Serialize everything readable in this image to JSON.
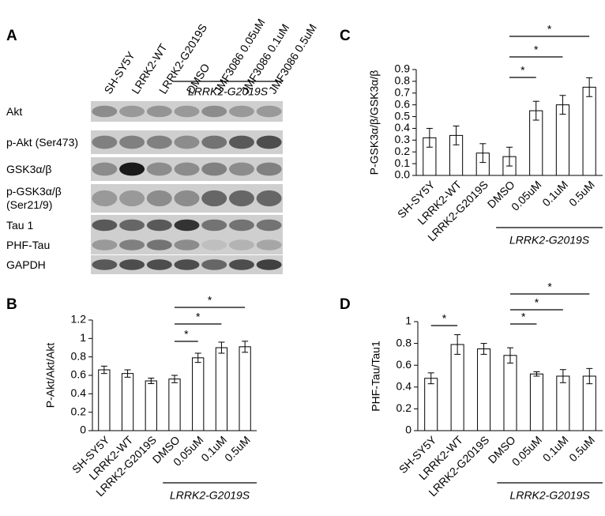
{
  "blot": {
    "panel": "A",
    "columns": [
      "SH-SY5Y",
      "LRRK2-WT",
      "LRRK2-G2019S",
      "DMSO",
      "JMF3086 0.05uM",
      "JMF3086 0.1uM",
      "JMF3086 0.5uM"
    ],
    "group": {
      "label": "LRRK2-G2019S",
      "from": 3,
      "to": 6
    },
    "rows": [
      "Akt",
      "p-Akt (Ser473)",
      "GSK3α/β",
      "p-GSK3α/β (Ser21/9)",
      "Tau 1",
      "PHF-Tau",
      "GAPDH"
    ]
  },
  "chart_data": [
    {
      "type": "bar",
      "panel": "B",
      "ylabel": "P-Akt/Akt/Akt",
      "color": "#ffffff",
      "categories": [
        "SH-SY5Y",
        "LRRK2-WT",
        "LRRK2-G2019S",
        "DMSO",
        "0.05uM",
        "0.1uM",
        "0.5uM"
      ],
      "values": [
        0.66,
        0.62,
        0.54,
        0.56,
        0.79,
        0.9,
        0.91
      ],
      "errors": [
        0.04,
        0.04,
        0.03,
        0.04,
        0.05,
        0.06,
        0.06
      ],
      "ylim": [
        0,
        1.2
      ],
      "yticks": [
        0,
        0.2,
        0.4,
        0.6,
        0.8,
        1,
        1.2
      ],
      "group": {
        "label": "LRRK2-G2019S",
        "from": 3,
        "to": 6
      },
      "significance": [
        {
          "from": 3,
          "to": 4,
          "label": "*"
        },
        {
          "from": 3,
          "to": 5,
          "label": "*"
        },
        {
          "from": 3,
          "to": 6,
          "label": "*"
        }
      ]
    },
    {
      "type": "bar",
      "panel": "C",
      "ylabel": "P-GSK3α/β/GSK3α/β",
      "color": "#ffffff",
      "categories": [
        "SH-SY5Y",
        "LRRK2-WT",
        "LRRK2-G2019S",
        "DMSO",
        "0.05uM",
        "0.1uM",
        "0.5uM"
      ],
      "values": [
        0.32,
        0.34,
        0.19,
        0.16,
        0.55,
        0.6,
        0.75
      ],
      "errors": [
        0.08,
        0.08,
        0.08,
        0.08,
        0.08,
        0.08,
        0.08
      ],
      "ylim": [
        0,
        0.9
      ],
      "yticks": [
        {
          "value": 0,
          "label": "0.0"
        },
        0.1,
        0.2,
        0.3,
        0.4,
        0.5,
        0.6,
        0.7,
        0.8,
        0.9
      ],
      "group": {
        "label": "LRRK2-G2019S",
        "from": 3,
        "to": 6
      },
      "significance": [
        {
          "from": 3,
          "to": 4,
          "label": "*"
        },
        {
          "from": 3,
          "to": 5,
          "label": "*"
        },
        {
          "from": 3,
          "to": 6,
          "label": "*"
        }
      ]
    },
    {
      "type": "bar",
      "panel": "D",
      "ylabel": "PHF-Tau/Tau1",
      "color": "#ffffff",
      "categories": [
        "SH-SY5Y",
        "LRRK2-WT",
        "LRRK2-G2019S",
        "DMSO",
        "0.05uM",
        "0.1uM",
        "0.5uM"
      ],
      "values": [
        0.48,
        0.79,
        0.75,
        0.69,
        0.52,
        0.5,
        0.5
      ],
      "errors": [
        0.05,
        0.09,
        0.05,
        0.07,
        0.02,
        0.06,
        0.07
      ],
      "ylim": [
        0,
        1
      ],
      "yticks": [
        0,
        0.2,
        0.4,
        0.6,
        0.8,
        1
      ],
      "group": {
        "label": "LRRK2-G2019S",
        "from": 3,
        "to": 6
      },
      "significance": [
        {
          "from": 0,
          "to": 1,
          "label": "*"
        },
        {
          "from": 3,
          "to": 4,
          "label": "*"
        },
        {
          "from": 3,
          "to": 5,
          "label": "*"
        },
        {
          "from": 3,
          "to": 6,
          "label": "*"
        }
      ]
    }
  ]
}
